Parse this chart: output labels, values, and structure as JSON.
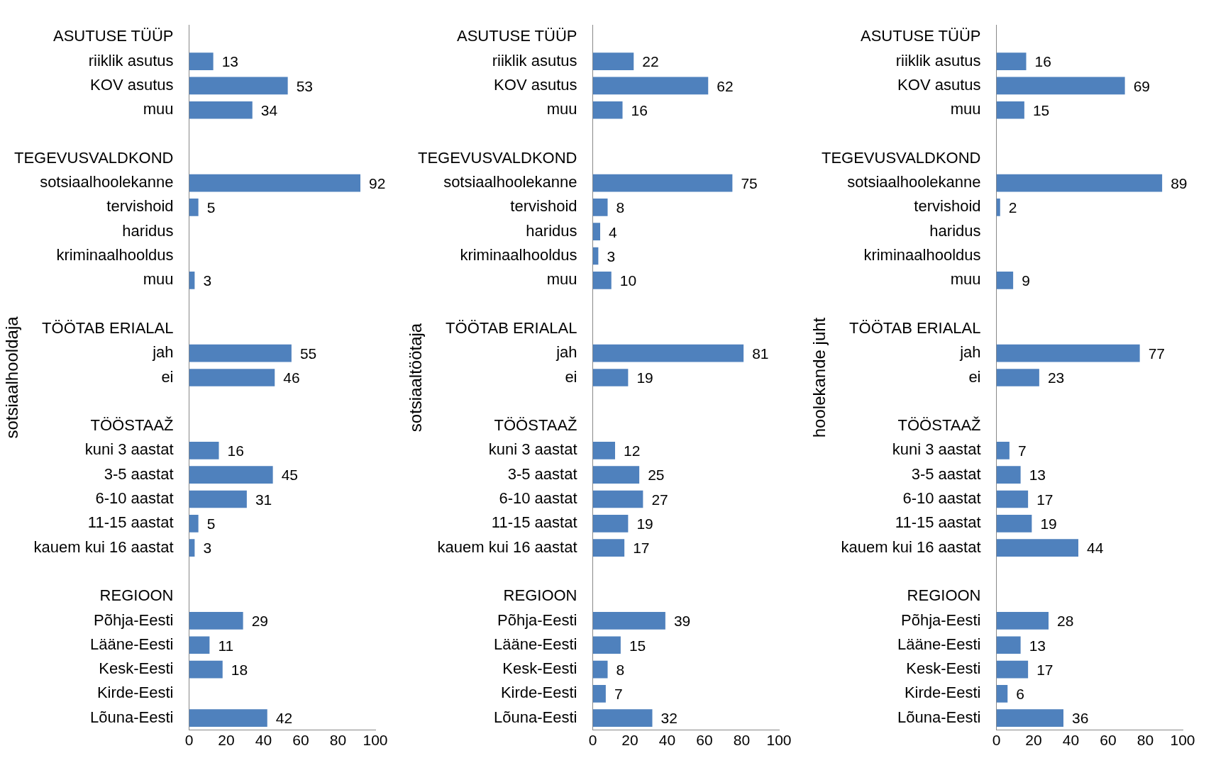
{
  "chart_data": [
    {
      "type": "bar",
      "orientation": "horizontal",
      "ylabel": "sotsiaalhooldaja",
      "color": "#4f81bd",
      "data_labels": true,
      "grid": false,
      "legend": false,
      "xlim": [
        0,
        100
      ],
      "xticks": [
        0,
        20,
        40,
        60,
        80,
        100
      ],
      "categories": [
        "ASUTUSE TÜÜP",
        "riiklik asutus",
        "KOV asutus",
        "muu",
        null,
        "TEGEVUSVALDKOND",
        "sotsiaalhoolekanne",
        "tervishoid",
        "haridus",
        "kriminaalhooldus",
        "muu",
        null,
        "TÖÖTAB ERIALAL",
        "jah",
        "ei",
        null,
        "TÖÖSTAAŽ",
        "kuni 3 aastat",
        "3-5 aastat",
        "6-10 aastat",
        "11-15 aastat",
        "kauem kui 16 aastat",
        null,
        "REGIOON",
        "Põhja-Eesti",
        "Lääne-Eesti",
        "Kesk-Eesti",
        "Kirde-Eesti",
        "Lõuna-Eesti"
      ],
      "values": [
        null,
        13,
        53,
        34,
        null,
        null,
        92,
        5,
        null,
        null,
        3,
        null,
        null,
        55,
        46,
        null,
        null,
        16,
        45,
        31,
        5,
        3,
        null,
        null,
        29,
        11,
        18,
        null,
        42
      ]
    },
    {
      "type": "bar",
      "orientation": "horizontal",
      "ylabel": "sotsiaaltöötaja",
      "color": "#4f81bd",
      "data_labels": true,
      "grid": false,
      "legend": false,
      "xlim": [
        0,
        100
      ],
      "xticks": [
        0,
        20,
        40,
        60,
        80,
        100
      ],
      "categories": [
        "ASUTUSE TÜÜP",
        "riiklik asutus",
        "KOV asutus",
        "muu",
        null,
        "TEGEVUSVALDKOND",
        "sotsiaalhoolekanne",
        "tervishoid",
        "haridus",
        "kriminaalhooldus",
        "muu",
        null,
        "TÖÖTAB ERIALAL",
        "jah",
        "ei",
        null,
        "TÖÖSTAAŽ",
        "kuni 3 aastat",
        "3-5 aastat",
        "6-10 aastat",
        "11-15 aastat",
        "kauem kui 16 aastat",
        null,
        "REGIOON",
        "Põhja-Eesti",
        "Lääne-Eesti",
        "Kesk-Eesti",
        "Kirde-Eesti",
        "Lõuna-Eesti"
      ],
      "values": [
        null,
        22,
        62,
        16,
        null,
        null,
        75,
        8,
        4,
        3,
        10,
        null,
        null,
        81,
        19,
        null,
        null,
        12,
        25,
        27,
        19,
        17,
        null,
        null,
        39,
        15,
        8,
        7,
        32
      ]
    },
    {
      "type": "bar",
      "orientation": "horizontal",
      "ylabel": "hoolekande juht",
      "color": "#4f81bd",
      "data_labels": true,
      "grid": false,
      "legend": false,
      "xlim": [
        0,
        100
      ],
      "xticks": [
        0,
        20,
        40,
        60,
        80,
        100
      ],
      "categories": [
        "ASUTUSE TÜÜP",
        "riiklik asutus",
        "KOV asutus",
        "muu",
        null,
        "TEGEVUSVALDKOND",
        "sotsiaalhoolekanne",
        "tervishoid",
        "haridus",
        "kriminaalhooldus",
        "muu",
        null,
        "TÖÖTAB ERIALAL",
        "jah",
        "ei",
        null,
        "TÖÖSTAAŽ",
        "kuni 3 aastat",
        "3-5 aastat",
        "6-10 aastat",
        "11-15 aastat",
        "kauem kui 16 aastat",
        null,
        "REGIOON",
        "Põhja-Eesti",
        "Lääne-Eesti",
        "Kesk-Eesti",
        "Kirde-Eesti",
        "Lõuna-Eesti"
      ],
      "values": [
        null,
        16,
        69,
        15,
        null,
        null,
        89,
        2,
        null,
        null,
        9,
        null,
        null,
        77,
        23,
        null,
        null,
        7,
        13,
        17,
        19,
        44,
        null,
        null,
        28,
        13,
        17,
        6,
        36
      ]
    }
  ]
}
